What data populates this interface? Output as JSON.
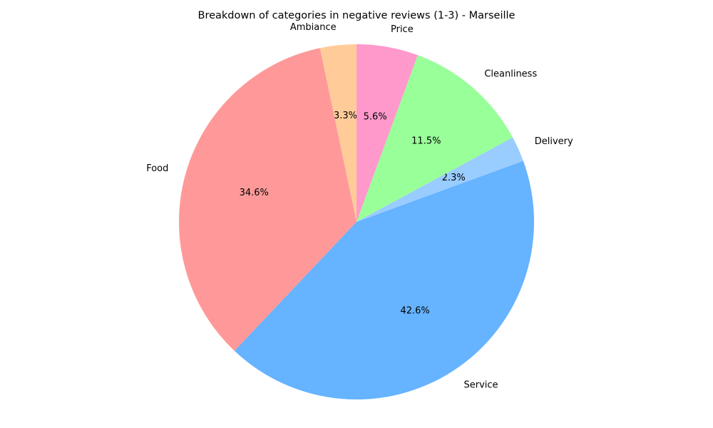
{
  "chart_data": {
    "type": "pie",
    "title": "Breakdown of categories in negative reviews (1-3) - Marseille",
    "start_angle_deg": 90,
    "direction": "counterclockwise",
    "slices": [
      {
        "label": "Ambiance",
        "value": 3.3,
        "pct_label": "3.3%",
        "color": "#ffcc99"
      },
      {
        "label": "Food",
        "value": 34.6,
        "pct_label": "34.6%",
        "color": "#ff9999"
      },
      {
        "label": "Service",
        "value": 42.6,
        "pct_label": "42.6%",
        "color": "#66b3ff"
      },
      {
        "label": "Delivery",
        "value": 2.3,
        "pct_label": "2.3%",
        "color": "#99ccff"
      },
      {
        "label": "Cleanliness",
        "value": 11.5,
        "pct_label": "11.5%",
        "color": "#99ff99"
      },
      {
        "label": "Price",
        "value": 5.6,
        "pct_label": "5.6%",
        "color": "#ff99cc"
      }
    ]
  }
}
